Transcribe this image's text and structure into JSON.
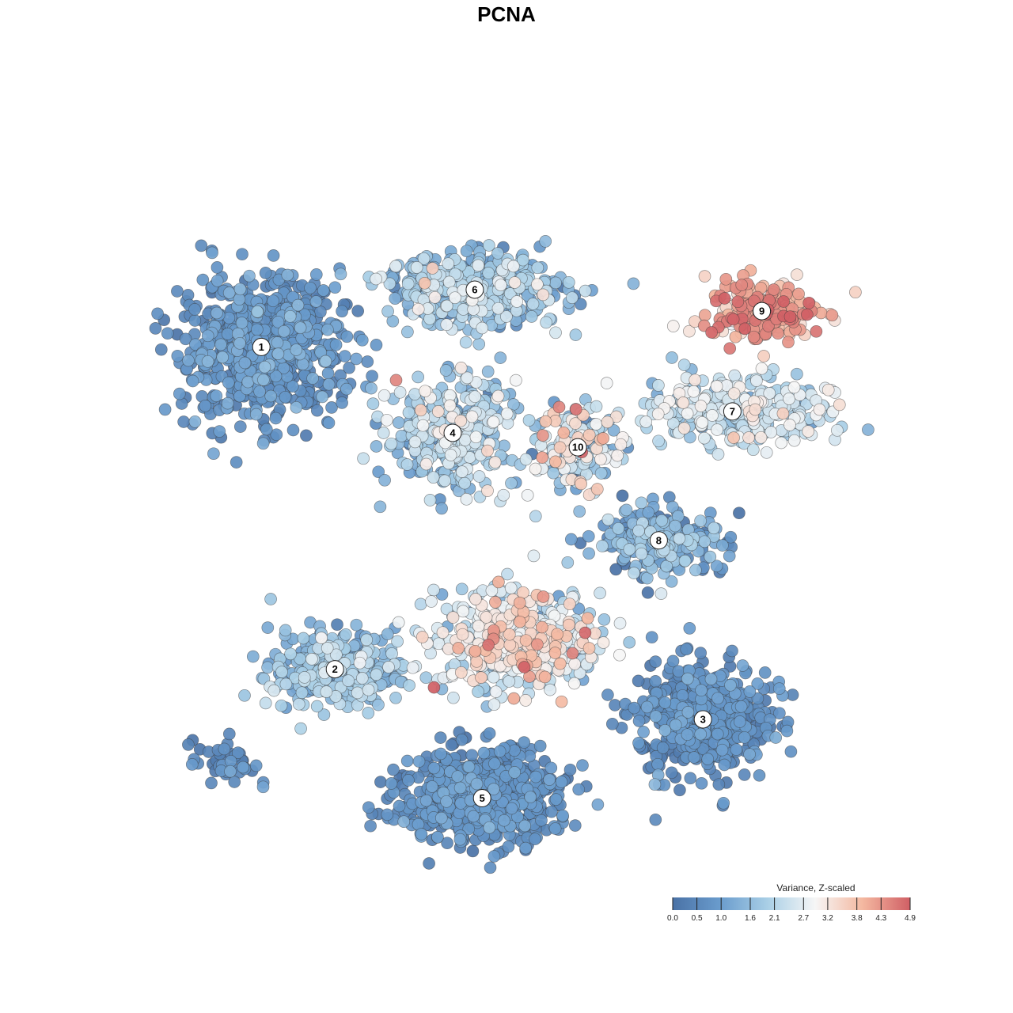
{
  "chart_data": {
    "type": "scatter",
    "title": "PCNA",
    "xlabel": "",
    "ylabel": "",
    "grid": false,
    "legend": {
      "title": "Variance, Z-scaled",
      "placement": "bottom-right",
      "range": [
        0.0,
        4.9
      ],
      "ticks": [
        "0.0",
        "0.5",
        "1.0",
        "1.6",
        "2.1",
        "2.7",
        "3.2",
        "3.8",
        "4.3",
        "4.9"
      ],
      "colors": [
        "#4a72a6",
        "#6a9ccd",
        "#a9cfe6",
        "#f6f6f6",
        "#f4b8a0",
        "#d05f65"
      ]
    },
    "clusters": [
      {
        "label": "1",
        "x": 0.14,
        "y": 0.72,
        "spread_x": 0.1,
        "spread_y": 0.09,
        "count": 700,
        "mean": 0.7,
        "sd": 0.35
      },
      {
        "label": "6",
        "x": 0.43,
        "y": 0.8,
        "spread_x": 0.11,
        "spread_y": 0.045,
        "count": 450,
        "mean": 1.6,
        "sd": 0.6
      },
      {
        "label": "9",
        "x": 0.82,
        "y": 0.77,
        "spread_x": 0.07,
        "spread_y": 0.04,
        "count": 220,
        "mean": 4.0,
        "sd": 0.5
      },
      {
        "label": "4",
        "x": 0.4,
        "y": 0.6,
        "spread_x": 0.08,
        "spread_y": 0.07,
        "count": 380,
        "mean": 1.9,
        "sd": 0.6
      },
      {
        "label": "10",
        "x": 0.57,
        "y": 0.58,
        "spread_x": 0.05,
        "spread_y": 0.05,
        "count": 150,
        "mean": 2.3,
        "sd": 1.0
      },
      {
        "label": "7",
        "x": 0.78,
        "y": 0.63,
        "spread_x": 0.12,
        "spread_y": 0.045,
        "count": 320,
        "mean": 2.3,
        "sd": 0.5
      },
      {
        "label": "8",
        "x": 0.68,
        "y": 0.45,
        "spread_x": 0.08,
        "spread_y": 0.04,
        "count": 250,
        "mean": 1.1,
        "sd": 0.7
      },
      {
        "label": "2",
        "x": 0.24,
        "y": 0.27,
        "spread_x": 0.08,
        "spread_y": 0.05,
        "count": 320,
        "mean": 1.6,
        "sd": 0.5
      },
      {
        "label": "3",
        "x": 0.74,
        "y": 0.2,
        "spread_x": 0.08,
        "spread_y": 0.07,
        "count": 500,
        "mean": 0.6,
        "sd": 0.3
      },
      {
        "label": "5",
        "x": 0.44,
        "y": 0.09,
        "spread_x": 0.1,
        "spread_y": 0.06,
        "count": 650,
        "mean": 0.6,
        "sd": 0.3
      },
      {
        "label": "",
        "x": 0.49,
        "y": 0.31,
        "spread_x": 0.1,
        "spread_y": 0.06,
        "count": 500,
        "mean": 2.6,
        "sd": 0.8
      },
      {
        "label": "",
        "x": 0.09,
        "y": 0.14,
        "spread_x": 0.04,
        "spread_y": 0.03,
        "count": 40,
        "mean": 0.5,
        "sd": 0.3
      }
    ]
  }
}
